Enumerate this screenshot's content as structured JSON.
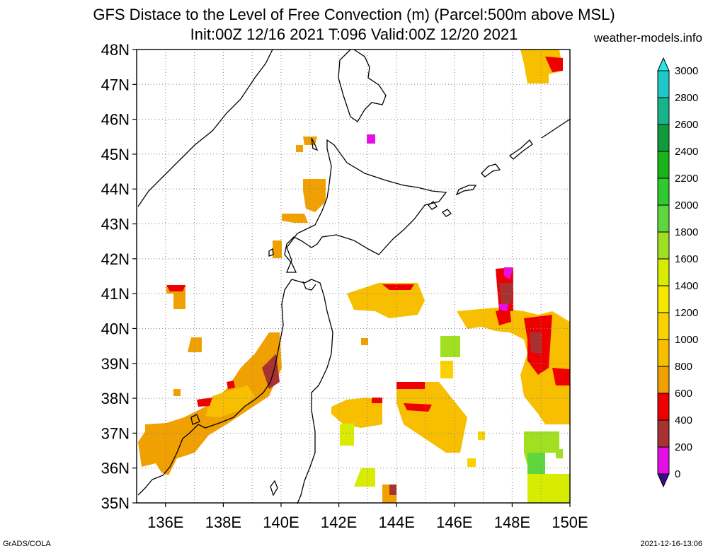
{
  "title_line1": "GFS Distace to the Level of Free Convection (m) (Parcel:500m above MSL)",
  "title_line2": "Init:00Z 12/16 2021 T:096 Valid:00Z 12/20 2021",
  "site": "weather-models.info",
  "footer_left": "GrADS/COLA",
  "footer_right": "2021-12-16-13:06",
  "lat_labels": [
    "35N",
    "36N",
    "37N",
    "38N",
    "39N",
    "40N",
    "41N",
    "42N",
    "43N",
    "44N",
    "45N",
    "46N",
    "47N",
    "48N"
  ],
  "lon_labels": [
    "136E",
    "138E",
    "140E",
    "142E",
    "144E",
    "146E",
    "148E",
    "150E"
  ],
  "colorbar": {
    "levels": [
      "0",
      "200",
      "400",
      "600",
      "800",
      "1000",
      "1200",
      "1400",
      "1600",
      "1800",
      "2000",
      "2200",
      "2400",
      "2600",
      "2800",
      "3000"
    ],
    "colors": [
      "#3d0a8a",
      "#e60ee6",
      "#a83232",
      "#ee0000",
      "#f0a000",
      "#f7bf00",
      "#fad200",
      "#f7e600",
      "#d7ec00",
      "#a0e020",
      "#5fd73c",
      "#2fca2f",
      "#19b419",
      "#0f9a3c",
      "#16b48c",
      "#1ec8c8",
      "#28e6e6"
    ]
  }
}
